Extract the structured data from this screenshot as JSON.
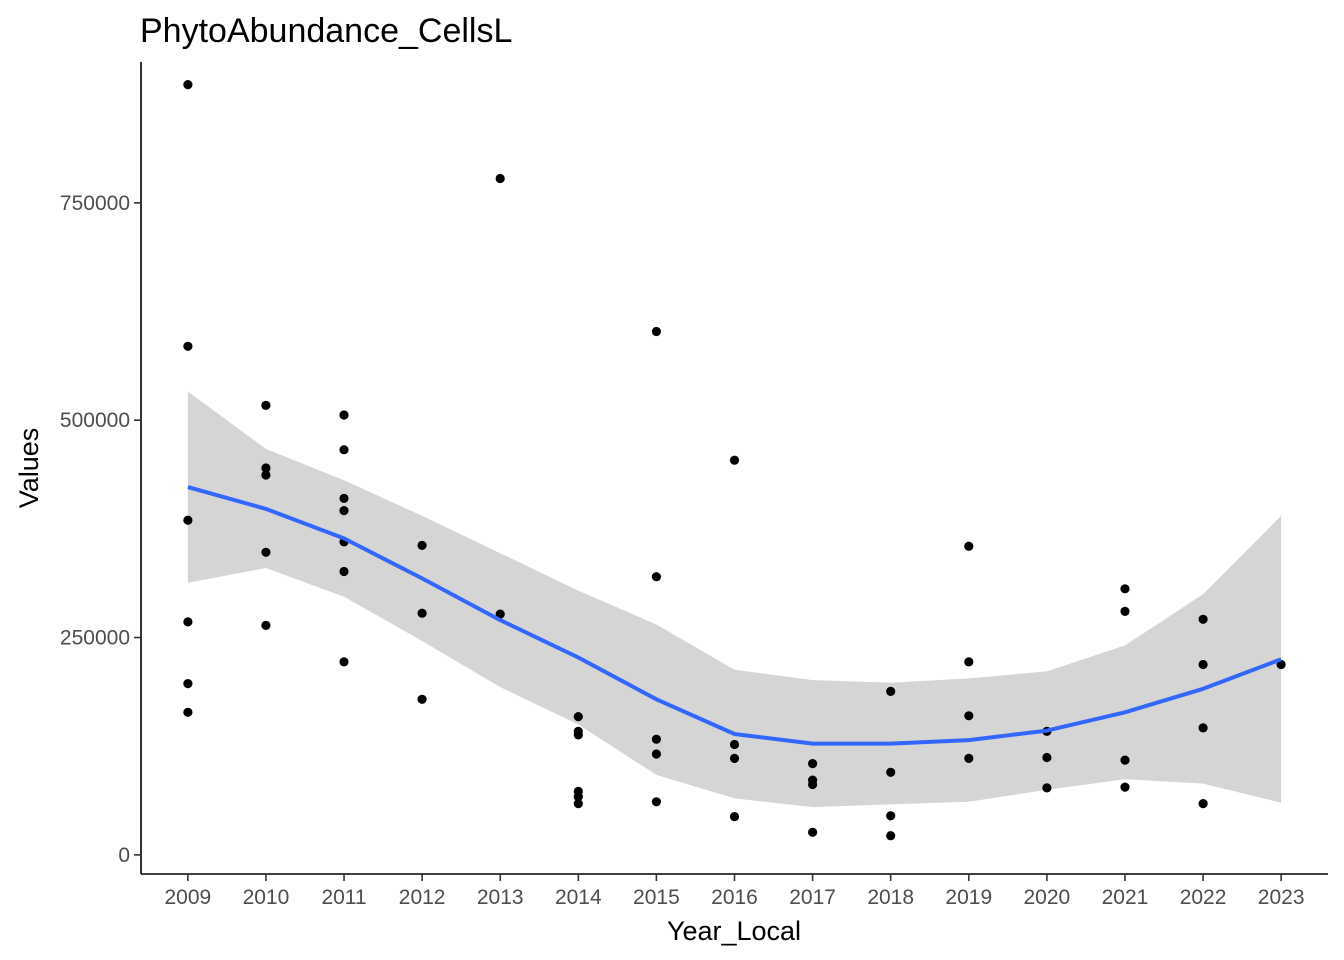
{
  "chart_data": {
    "type": "scatter",
    "title": "PhytoAbundance_CellsL",
    "xlabel": "Year_Local",
    "ylabel": "Values",
    "x_categories": [
      "2009",
      "2010",
      "2011",
      "2012",
      "2013",
      "2014",
      "2015",
      "2016",
      "2017",
      "2018",
      "2019",
      "2020",
      "2021",
      "2022",
      "2023"
    ],
    "ylim": [
      -22000,
      912000
    ],
    "y_ticks": [
      0,
      250000,
      500000,
      750000
    ],
    "y_tick_labels": [
      "0",
      "250000",
      "500000",
      "750000"
    ],
    "grid": false,
    "points": [
      {
        "x": "2009",
        "y": 886000
      },
      {
        "x": "2009",
        "y": 585000
      },
      {
        "x": "2009",
        "y": 385000
      },
      {
        "x": "2009",
        "y": 268000
      },
      {
        "x": "2009",
        "y": 197000
      },
      {
        "x": "2009",
        "y": 164000
      },
      {
        "x": "2010",
        "y": 517000
      },
      {
        "x": "2010",
        "y": 445000
      },
      {
        "x": "2010",
        "y": 437000
      },
      {
        "x": "2010",
        "y": 348000
      },
      {
        "x": "2010",
        "y": 264000
      },
      {
        "x": "2011",
        "y": 506000
      },
      {
        "x": "2011",
        "y": 466000
      },
      {
        "x": "2011",
        "y": 410000
      },
      {
        "x": "2011",
        "y": 396000
      },
      {
        "x": "2011",
        "y": 360000
      },
      {
        "x": "2011",
        "y": 326000
      },
      {
        "x": "2011",
        "y": 222000
      },
      {
        "x": "2012",
        "y": 356000
      },
      {
        "x": "2012",
        "y": 278000
      },
      {
        "x": "2012",
        "y": 179000
      },
      {
        "x": "2013",
        "y": 778000
      },
      {
        "x": "2013",
        "y": 277000
      },
      {
        "x": "2014",
        "y": 159000
      },
      {
        "x": "2014",
        "y": 142000
      },
      {
        "x": "2014",
        "y": 138000
      },
      {
        "x": "2014",
        "y": 73000
      },
      {
        "x": "2014",
        "y": 67000
      },
      {
        "x": "2014",
        "y": 59000
      },
      {
        "x": "2015",
        "y": 602000
      },
      {
        "x": "2015",
        "y": 320000
      },
      {
        "x": "2015",
        "y": 133000
      },
      {
        "x": "2015",
        "y": 116000
      },
      {
        "x": "2015",
        "y": 61000
      },
      {
        "x": "2016",
        "y": 454000
      },
      {
        "x": "2016",
        "y": 127000
      },
      {
        "x": "2016",
        "y": 111000
      },
      {
        "x": "2016",
        "y": 44000
      },
      {
        "x": "2017",
        "y": 105000
      },
      {
        "x": "2017",
        "y": 86000
      },
      {
        "x": "2017",
        "y": 81000
      },
      {
        "x": "2017",
        "y": 26000
      },
      {
        "x": "2018",
        "y": 188000
      },
      {
        "x": "2018",
        "y": 95000
      },
      {
        "x": "2018",
        "y": 45000
      },
      {
        "x": "2018",
        "y": 22000
      },
      {
        "x": "2019",
        "y": 355000
      },
      {
        "x": "2019",
        "y": 222000
      },
      {
        "x": "2019",
        "y": 160000
      },
      {
        "x": "2019",
        "y": 111000
      },
      {
        "x": "2020",
        "y": 142000
      },
      {
        "x": "2020",
        "y": 112000
      },
      {
        "x": "2020",
        "y": 77000
      },
      {
        "x": "2021",
        "y": 306000
      },
      {
        "x": "2021",
        "y": 280000
      },
      {
        "x": "2021",
        "y": 109000
      },
      {
        "x": "2021",
        "y": 78000
      },
      {
        "x": "2022",
        "y": 271000
      },
      {
        "x": "2022",
        "y": 219000
      },
      {
        "x": "2022",
        "y": 146000
      },
      {
        "x": "2022",
        "y": 59000
      },
      {
        "x": "2023",
        "y": 219000
      }
    ],
    "smooth": {
      "color": "#3366ff",
      "ribbon_color": "#d3d3d3",
      "x": [
        2009,
        2010,
        2011,
        2012,
        2013,
        2014,
        2015,
        2016,
        2017,
        2018,
        2019,
        2020,
        2021,
        2022,
        2023
      ],
      "y": [
        423000,
        398000,
        364000,
        318000,
        270000,
        227000,
        179000,
        139000,
        128000,
        128000,
        132000,
        143000,
        164000,
        191000,
        225000
      ],
      "lower": [
        313000,
        330000,
        297000,
        246000,
        193000,
        150000,
        92000,
        65000,
        55000,
        58000,
        61000,
        75000,
        87000,
        82000,
        60000
      ],
      "upper": [
        533000,
        467000,
        431000,
        390000,
        347000,
        304000,
        265000,
        213000,
        201000,
        198000,
        203000,
        211000,
        241000,
        300000,
        390000
      ]
    },
    "point_color": "#000000"
  }
}
